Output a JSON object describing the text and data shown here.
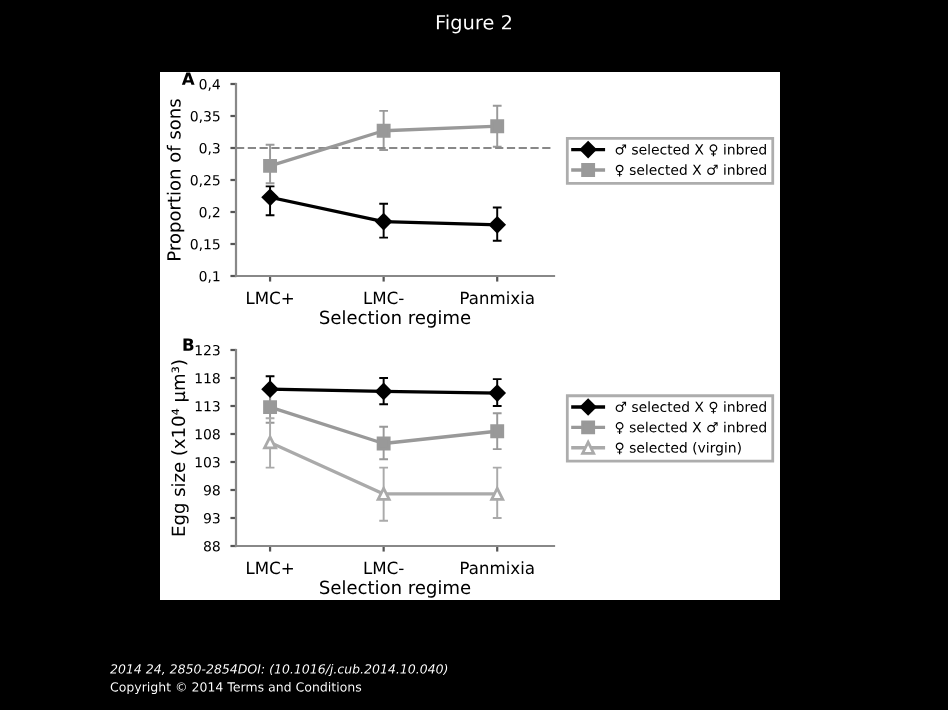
{
  "chart_data": [
    {
      "type": "line",
      "title": "Figure 2",
      "annotations": [
        "A"
      ],
      "xlabel": "Selection regime",
      "ylabel": "Proportion of sons",
      "categories": [
        "LMC+",
        "LMC-",
        "Panmixia"
      ],
      "series": [
        {
          "name": "♂ selected X ♀ inbred",
          "color": "#000000",
          "marker": "diamond",
          "values": [
            0.223,
            0.185,
            0.18
          ],
          "errors": [
            [
              0.195,
              0.24
            ],
            [
              0.16,
              0.213
            ],
            [
              0.155,
              0.207
            ]
          ]
        },
        {
          "name": "♀ selected X ♂ inbred",
          "color": "#999999",
          "marker": "square",
          "values": [
            0.272,
            0.327,
            0.334
          ],
          "errors": [
            [
              0.245,
              0.305
            ],
            [
              0.297,
              0.358
            ],
            [
              0.302,
              0.366
            ]
          ]
        }
      ],
      "ylim": [
        0.1,
        0.4
      ],
      "yticks": [
        {
          "value": 0.1,
          "label": "0,1"
        },
        {
          "value": 0.15,
          "label": "0,15"
        },
        {
          "value": 0.2,
          "label": "0,2"
        },
        {
          "value": 0.25,
          "label": "0,25"
        },
        {
          "value": 0.3,
          "label": "0,3"
        },
        {
          "value": 0.35,
          "label": "0,35"
        },
        {
          "value": 0.4,
          "label": "0,4"
        }
      ],
      "ref_lines": [
        {
          "axis": "y",
          "value": 0.3,
          "color": "#888888",
          "line_style": "dashed"
        }
      ],
      "legend": "right",
      "grid": false
    },
    {
      "type": "line",
      "annotations": [
        "B",
        "2014 24, 2850-2854DOI: (10.1016/j.cub.2014.10.040)",
        "Copyright © 2014 Terms and Conditions"
      ],
      "xlabel": "Selection regime",
      "ylabel": "Egg size (x10⁴ µm³)",
      "categories": [
        "LMC+",
        "LMC-",
        "Panmixia"
      ],
      "series": [
        {
          "name": "♂ selected X ♀ inbred",
          "color": "#000000",
          "marker": "diamond",
          "values": [
            116,
            115.6,
            115.3
          ],
          "errors": [
            [
              113.5,
              118.3
            ],
            [
              113.3,
              118
            ],
            [
              113,
              117.8
            ]
          ]
        },
        {
          "name": "♀ selected X ♂ inbred",
          "color": "#999999",
          "marker": "square",
          "values": [
            112.8,
            106.3,
            108.5
          ],
          "errors": [
            [
              110,
              115.5
            ],
            [
              103.5,
              109.3
            ],
            [
              105.3,
              111.7
            ]
          ]
        },
        {
          "name": "♀ selected (virgin)",
          "color": "#aaaaaa",
          "marker": "triangle",
          "values": [
            106.5,
            97.3,
            97.3
          ],
          "errors": [
            [
              102,
              110.8
            ],
            [
              92.5,
              102
            ],
            [
              93,
              102
            ]
          ]
        }
      ],
      "ylim": [
        88,
        123
      ],
      "yticks": [
        88,
        93,
        98,
        103,
        108,
        113,
        118,
        123
      ],
      "legend": "right",
      "grid": false
    }
  ]
}
